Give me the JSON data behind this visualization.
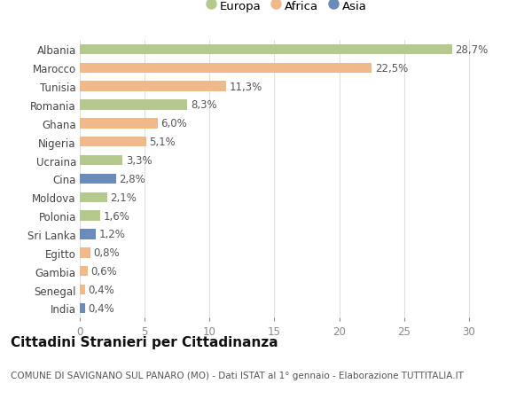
{
  "categories": [
    "Albania",
    "Marocco",
    "Tunisia",
    "Romania",
    "Ghana",
    "Nigeria",
    "Ucraina",
    "Cina",
    "Moldova",
    "Polonia",
    "Sri Lanka",
    "Egitto",
    "Gambia",
    "Senegal",
    "India"
  ],
  "values": [
    28.7,
    22.5,
    11.3,
    8.3,
    6.0,
    5.1,
    3.3,
    2.8,
    2.1,
    1.6,
    1.2,
    0.8,
    0.6,
    0.4,
    0.4
  ],
  "labels": [
    "28,7%",
    "22,5%",
    "11,3%",
    "8,3%",
    "6,0%",
    "5,1%",
    "3,3%",
    "2,8%",
    "2,1%",
    "1,6%",
    "1,2%",
    "0,8%",
    "0,6%",
    "0,4%",
    "0,4%"
  ],
  "continents": [
    "Europa",
    "Africa",
    "Africa",
    "Europa",
    "Africa",
    "Africa",
    "Europa",
    "Asia",
    "Europa",
    "Europa",
    "Asia",
    "Africa",
    "Africa",
    "Africa",
    "Asia"
  ],
  "colors": {
    "Europa": "#b5c98e",
    "Africa": "#f0b989",
    "Asia": "#6b8cba"
  },
  "xlim": [
    0,
    32
  ],
  "xticks": [
    0,
    5,
    10,
    15,
    20,
    25,
    30
  ],
  "title": "Cittadini Stranieri per Cittadinanza",
  "subtitle": "COMUNE DI SAVIGNANO SUL PANARO (MO) - Dati ISTAT al 1° gennaio - Elaborazione TUTTITALIA.IT",
  "background_color": "#ffffff",
  "grid_color": "#e0e0e0",
  "bar_height": 0.55,
  "label_fontsize": 8.5,
  "tick_fontsize": 8.5,
  "title_fontsize": 11,
  "subtitle_fontsize": 7.5
}
